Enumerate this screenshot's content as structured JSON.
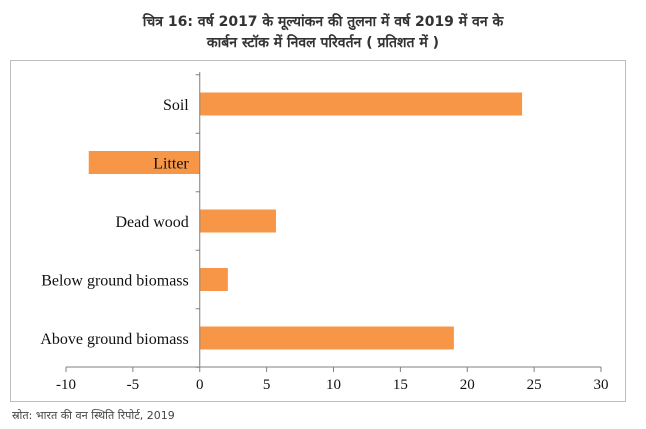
{
  "title_line1": "चित्र 16: वर्ष 2017 के मूल्यांकन की तुलना में वर्ष 2019 में वन के",
  "title_line2": "कार्बन स्टॉक में निवल परिवर्तन ( प्रतिशत में )",
  "source": "स्रोत: भारत की वन स्थिति रिपोर्ट, 2019",
  "colors": {
    "bar": "#F79646",
    "axis": "#7f7f7f"
  },
  "chart_data": {
    "type": "bar",
    "orientation": "horizontal",
    "categories": [
      "Soil",
      "Litter",
      "Dead wood",
      "Below ground biomass",
      "Above ground biomass"
    ],
    "values": [
      24.1,
      -8.3,
      5.7,
      2.1,
      19.0
    ],
    "xlim": [
      -10,
      30
    ],
    "xticks": [
      -10,
      -5,
      0,
      5,
      10,
      15,
      20,
      25,
      30
    ],
    "grid": false,
    "legend": "none"
  }
}
